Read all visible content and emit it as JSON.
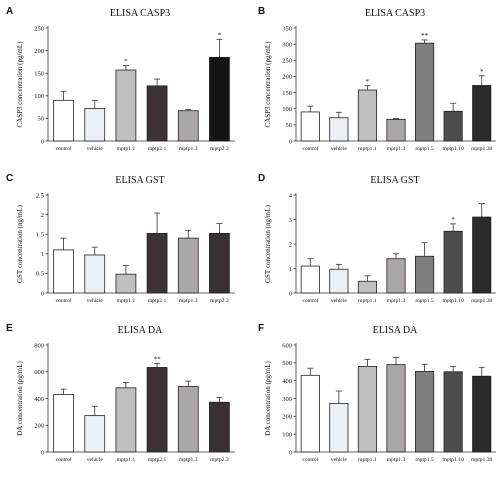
{
  "chart_data": [
    {
      "panel": "A",
      "type": "bar",
      "title": "ELISA CASP3",
      "ylabel": "CASP3 concentration (pg/mL)",
      "ylim": [
        0,
        250
      ],
      "yticks": [
        0,
        50,
        100,
        150,
        200,
        250
      ],
      "categories": [
        "control",
        "vehicle",
        "mptp1.1",
        "mptp2.1",
        "mptp1.3",
        "mptp2.3"
      ],
      "values": [
        90,
        72,
        157,
        122,
        67,
        185
      ],
      "errors": [
        20,
        18,
        10,
        15,
        3,
        40
      ],
      "significance": [
        "",
        "",
        "*",
        "",
        "",
        "*"
      ],
      "colors": [
        "#ffffff",
        "#eceff4",
        "#bfbfbf",
        "#3d3237",
        "#aba7a9",
        "#141414"
      ]
    },
    {
      "panel": "B",
      "type": "bar",
      "title": "ELISA CASP3",
      "ylabel": "CASP3 concentration (pg/mL)",
      "ylim": [
        0,
        350
      ],
      "yticks": [
        0,
        50,
        100,
        150,
        200,
        250,
        300,
        350
      ],
      "categories": [
        "control",
        "vehicle",
        "mptp1.1",
        "mptp1.3",
        "mptp1.5",
        "mptp1.10",
        "mptp1.30"
      ],
      "values": [
        90,
        72,
        158,
        67,
        303,
        92,
        172
      ],
      "errors": [
        18,
        17,
        13,
        3,
        10,
        25,
        30
      ],
      "significance": [
        "",
        "",
        "*",
        "",
        "**",
        "",
        "*"
      ],
      "colors": [
        "#ffffff",
        "#eceff4",
        "#bfbfbf",
        "#aba7a9",
        "#7f7f7f",
        "#4d4d4d",
        "#2c2a2b"
      ]
    },
    {
      "panel": "C",
      "type": "bar",
      "title": "ELISA GST",
      "ylabel": "GST concentration (ng/mL)",
      "ylim": [
        0,
        2.5
      ],
      "yticks": [
        0,
        0.5,
        1,
        1.5,
        2,
        2.5
      ],
      "categories": [
        "control",
        "vehicle",
        "mptp1.1",
        "mptp2.1",
        "mptp1.3",
        "mptp2.3"
      ],
      "values": [
        1.1,
        0.97,
        0.48,
        1.52,
        1.4,
        1.52
      ],
      "errors": [
        0.3,
        0.2,
        0.22,
        0.52,
        0.2,
        0.25
      ],
      "significance": [
        "",
        "",
        "",
        "",
        "",
        ""
      ],
      "colors": [
        "#ffffff",
        "#eceff4",
        "#bfbfbf",
        "#3d3237",
        "#aba7a9",
        "#3a3034"
      ]
    },
    {
      "panel": "D",
      "type": "bar",
      "title": "ELISA GST",
      "ylabel": "GST concentration (ng/mL)",
      "ylim": [
        0,
        4
      ],
      "yticks": [
        0,
        1,
        2,
        3,
        4
      ],
      "categories": [
        "control",
        "vehicle",
        "mptp1.1",
        "mptp1.3",
        "mptp1.5",
        "mptp1.10",
        "mptp1.30"
      ],
      "values": [
        1.1,
        0.97,
        0.48,
        1.4,
        1.5,
        2.52,
        3.1
      ],
      "errors": [
        0.3,
        0.2,
        0.22,
        0.2,
        0.55,
        0.3,
        0.55
      ],
      "significance": [
        "",
        "",
        "",
        "",
        "",
        "*",
        ""
      ],
      "colors": [
        "#ffffff",
        "#eceff4",
        "#bfbfbf",
        "#aba7a9",
        "#7f7f7f",
        "#4d4d4d",
        "#2c2a2b"
      ]
    },
    {
      "panel": "E",
      "type": "bar",
      "title": "ELISA DA",
      "ylabel": "DA concentration (pg/mL)",
      "ylim": [
        0,
        800
      ],
      "yticks": [
        0,
        200,
        400,
        600,
        800
      ],
      "categories": [
        "control",
        "vehicle",
        "mptp1.1",
        "mptp2.1",
        "mptp1.3",
        "mptp2.3"
      ],
      "values": [
        430,
        272,
        480,
        632,
        490,
        372
      ],
      "errors": [
        40,
        70,
        40,
        30,
        40,
        35
      ],
      "significance": [
        "",
        "",
        "",
        "**",
        "",
        ""
      ],
      "colors": [
        "#ffffff",
        "#eceff4",
        "#bfbfbf",
        "#3d3237",
        "#aba7a9",
        "#3a3034"
      ]
    },
    {
      "panel": "F",
      "type": "bar",
      "title": "ELISA DA",
      "ylabel": "DA concentration (pg/mL)",
      "ylim": [
        0,
        600
      ],
      "yticks": [
        0,
        100,
        200,
        300,
        400,
        500,
        600
      ],
      "categories": [
        "control",
        "vehicle",
        "mptp1.1",
        "mptp1.3",
        "mptp1.5",
        "mptp1.10",
        "mptp1.30"
      ],
      "values": [
        430,
        272,
        480,
        490,
        452,
        450,
        425
      ],
      "errors": [
        40,
        70,
        40,
        40,
        40,
        30,
        50
      ],
      "significance": [
        "",
        "",
        "",
        "",
        "",
        "",
        ""
      ],
      "colors": [
        "#ffffff",
        "#eceff4",
        "#bfbfbf",
        "#aba7a9",
        "#7f7f7f",
        "#4d4d4d",
        "#2c2a2b"
      ]
    }
  ]
}
